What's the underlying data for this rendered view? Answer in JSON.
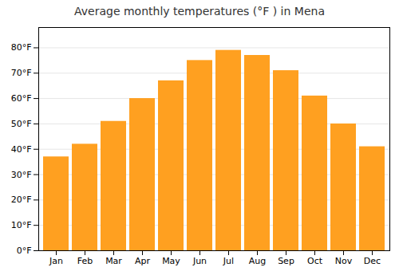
{
  "chart_data": {
    "type": "bar",
    "title": "Average monthly temperatures (°F ) in Mena",
    "categories": [
      "Jan",
      "Feb",
      "Mar",
      "Apr",
      "May",
      "Jun",
      "Jul",
      "Aug",
      "Sep",
      "Oct",
      "Nov",
      "Dec"
    ],
    "values": [
      37,
      42,
      51,
      60,
      67,
      75,
      79,
      77,
      71,
      61,
      50,
      41
    ],
    "color": "#FFA020",
    "ylim": [
      0,
      88
    ],
    "yticks": [
      {
        "value": 0,
        "label": "0°F"
      },
      {
        "value": 10,
        "label": "10°F"
      },
      {
        "value": 20,
        "label": "20°F"
      },
      {
        "value": 30,
        "label": "30°F"
      },
      {
        "value": 40,
        "label": "40°F"
      },
      {
        "value": 50,
        "label": "50°F"
      },
      {
        "value": 60,
        "label": "60°F"
      },
      {
        "value": 70,
        "label": "70°F"
      },
      {
        "value": 80,
        "label": "80°F"
      }
    ],
    "grid": true
  }
}
